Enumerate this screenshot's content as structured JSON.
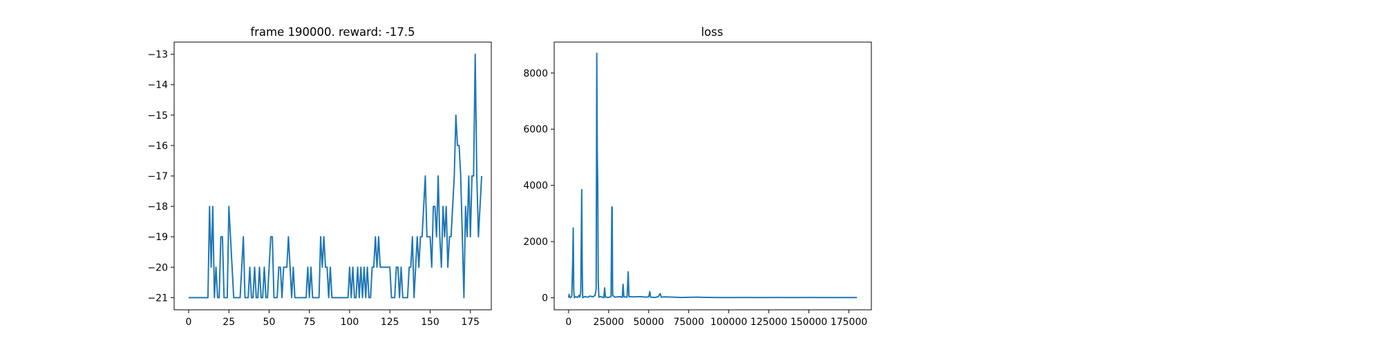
{
  "chart_data": [
    {
      "type": "line",
      "title": "frame 190000. reward: -17.5",
      "xlabel": "",
      "ylabel": "",
      "xlim": [
        -9,
        188
      ],
      "ylim": [
        -21.4,
        -12.6
      ],
      "xticks": [
        0,
        25,
        50,
        75,
        100,
        125,
        150,
        175
      ],
      "xtick_labels": [
        "0",
        "25",
        "50",
        "75",
        "100",
        "125",
        "150",
        "175"
      ],
      "yticks": [
        -21,
        -20,
        -19,
        -18,
        -17,
        -16,
        -15,
        -14,
        -13
      ],
      "ytick_labels": [
        "−21",
        "−20",
        "−19",
        "−18",
        "−17",
        "−16",
        "−15",
        "−14",
        "−13"
      ],
      "grid": false,
      "line_color": "#1f77b4",
      "series": [
        {
          "values": [
            -21,
            -21,
            -21,
            -21,
            -21,
            -21,
            -21,
            -21,
            -21,
            -21,
            -21,
            -21,
            -21,
            -18,
            -20,
            -18,
            -21,
            -20,
            -21,
            -21,
            -19,
            -19,
            -21,
            -21,
            -21,
            -18,
            -19,
            -20,
            -21,
            -21,
            -21,
            -21,
            -21,
            -20,
            -19,
            -21,
            -21,
            -21,
            -20,
            -21,
            -21,
            -20,
            -21,
            -21,
            -20,
            -21,
            -21,
            -20,
            -21,
            -21,
            -20,
            -19,
            -19,
            -21,
            -21,
            -21,
            -20,
            -20,
            -21,
            -20,
            -20,
            -20,
            -19,
            -20,
            -21,
            -20,
            -21,
            -21,
            -21,
            -21,
            -21,
            -21,
            -21,
            -21,
            -20,
            -21,
            -20,
            -21,
            -21,
            -21,
            -21,
            -21,
            -19,
            -20,
            -19,
            -20,
            -20,
            -21,
            -20,
            -21,
            -21,
            -21,
            -21,
            -21,
            -21,
            -21,
            -21,
            -21,
            -21,
            -21,
            -20,
            -21,
            -20,
            -21,
            -21,
            -20,
            -21,
            -20,
            -21,
            -20,
            -21,
            -20,
            -21,
            -21,
            -20,
            -20,
            -19,
            -20,
            -19,
            -20,
            -20,
            -20,
            -20,
            -20,
            -20,
            -20,
            -21,
            -21,
            -21,
            -20,
            -20,
            -21,
            -20,
            -21,
            -21,
            -21,
            -21,
            -20,
            -20,
            -19,
            -21,
            -20,
            -19,
            -20,
            -19,
            -19,
            -18,
            -17,
            -19,
            -19,
            -19,
            -20,
            -18,
            -18,
            -19,
            -17,
            -19,
            -20,
            -18,
            -19,
            -18,
            -20,
            -19,
            -19,
            -18,
            -17,
            -15,
            -16,
            -16,
            -17,
            -19,
            -21,
            -18,
            -19,
            -17,
            -19,
            -17,
            -17,
            -13,
            -17,
            -19,
            -18,
            -17
          ]
        }
      ]
    },
    {
      "type": "line",
      "title": "loss",
      "xlabel": "",
      "ylabel": "",
      "xlim": [
        -9000,
        189000
      ],
      "ylim": [
        -430,
        9100
      ],
      "xticks": [
        0,
        25000,
        50000,
        75000,
        100000,
        125000,
        150000,
        175000
      ],
      "xtick_labels": [
        "0",
        "25000",
        "50000",
        "75000",
        "100000",
        "125000",
        "150000",
        "175000"
      ],
      "yticks": [
        0,
        2000,
        4000,
        6000,
        8000
      ],
      "ytick_labels": [
        "0",
        "2000",
        "4000",
        "6000",
        "8000"
      ],
      "grid": false,
      "line_color": "#1f77b4",
      "series": [
        {
          "points": [
            [
              0,
              0
            ],
            [
              300,
              120
            ],
            [
              700,
              30
            ],
            [
              1200,
              0
            ],
            [
              2000,
              60
            ],
            [
              2600,
              1400
            ],
            [
              2900,
              2480
            ],
            [
              3200,
              300
            ],
            [
              3600,
              0
            ],
            [
              4500,
              40
            ],
            [
              5500,
              10
            ],
            [
              6500,
              80
            ],
            [
              7000,
              20
            ],
            [
              7600,
              200
            ],
            [
              8200,
              3850
            ],
            [
              8500,
              1100
            ],
            [
              8800,
              0
            ],
            [
              10000,
              40
            ],
            [
              12000,
              20
            ],
            [
              13500,
              60
            ],
            [
              15000,
              30
            ],
            [
              16500,
              80
            ],
            [
              17200,
              300
            ],
            [
              17600,
              8700
            ],
            [
              17900,
              5200
            ],
            [
              18200,
              4000
            ],
            [
              18500,
              600
            ],
            [
              18900,
              20
            ],
            [
              20000,
              40
            ],
            [
              22000,
              0
            ],
            [
              22500,
              350
            ],
            [
              23000,
              20
            ],
            [
              25000,
              10
            ],
            [
              26500,
              40
            ],
            [
              27000,
              3230
            ],
            [
              27200,
              3230
            ],
            [
              27500,
              80
            ],
            [
              29000,
              20
            ],
            [
              32000,
              40
            ],
            [
              33500,
              10
            ],
            [
              34000,
              480
            ],
            [
              34500,
              30
            ],
            [
              36500,
              20
            ],
            [
              37200,
              920
            ],
            [
              37700,
              40
            ],
            [
              40000,
              30
            ],
            [
              45000,
              40
            ],
            [
              48000,
              20
            ],
            [
              50000,
              30
            ],
            [
              50700,
              220
            ],
            [
              51200,
              20
            ],
            [
              54000,
              10
            ],
            [
              56000,
              40
            ],
            [
              57200,
              150
            ],
            [
              57800,
              20
            ],
            [
              60000,
              30
            ],
            [
              65000,
              20
            ],
            [
              70000,
              10
            ],
            [
              80000,
              20
            ],
            [
              90000,
              10
            ],
            [
              100000,
              5
            ],
            [
              110000,
              10
            ],
            [
              120000,
              5
            ],
            [
              130000,
              8
            ],
            [
              140000,
              5
            ],
            [
              150000,
              8
            ],
            [
              160000,
              5
            ],
            [
              170000,
              6
            ],
            [
              180000,
              5
            ]
          ]
        }
      ]
    }
  ]
}
